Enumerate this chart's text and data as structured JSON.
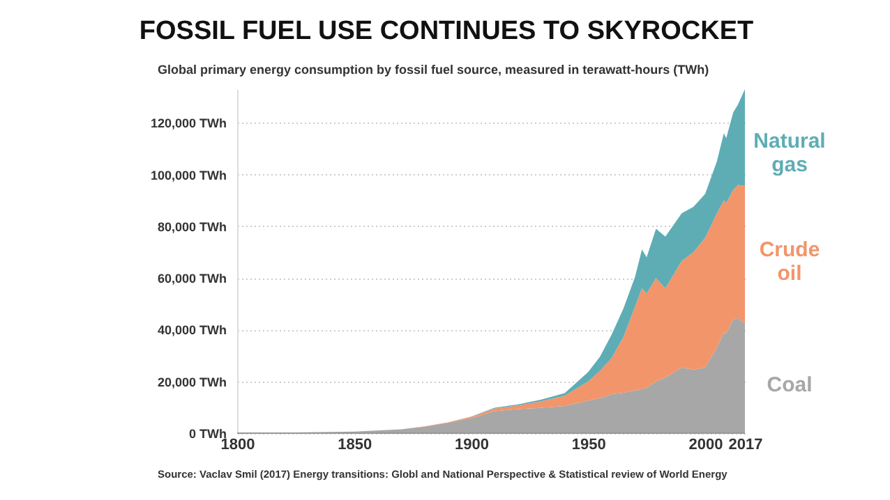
{
  "chart_data": {
    "type": "area",
    "title": "FOSSIL FUEL USE CONTINUES TO SKYROCKET",
    "subtitle": "Global primary energy consumption by fossil fuel source, measured in terawatt-hours (TWh)",
    "annotations": [
      "Source: Vaclav Smil (2017) Energy transitions: Globl and National Perspective & Statistical review of World Energy"
    ],
    "stacked": true,
    "grid": "y",
    "x": [
      1800,
      1825,
      1850,
      1870,
      1880,
      1890,
      1900,
      1910,
      1920,
      1930,
      1940,
      1950,
      1955,
      1960,
      1965,
      1970,
      1973,
      1975,
      1979,
      1983,
      1990,
      1995,
      2000,
      2005,
      2008,
      2009,
      2012,
      2014,
      2017
    ],
    "xlim": [
      1800,
      2017
    ],
    "xticks": [
      1800,
      1850,
      1900,
      1950,
      2000,
      2017
    ],
    "ylim": [
      0,
      133000
    ],
    "yticks": [
      {
        "value": 0,
        "label": "0 TWh"
      },
      {
        "value": 20000,
        "label": "20,000 TWh"
      },
      {
        "value": 40000,
        "label": "40,000 TWh"
      },
      {
        "value": 60000,
        "label": "60,000 TWh"
      },
      {
        "value": 80000,
        "label": "80,000 TWh"
      },
      {
        "value": 100000,
        "label": "100,000 TWh"
      },
      {
        "value": 120000,
        "label": "120,000 TWh"
      }
    ],
    "series": [
      {
        "name": "Coal",
        "color": "#a7a7a7",
        "values": [
          100,
          300,
          600,
          1500,
          2500,
          4000,
          5800,
          8500,
          9300,
          9800,
          10500,
          12600,
          13500,
          15000,
          15600,
          16500,
          17000,
          17500,
          20000,
          21500,
          25400,
          24500,
          25400,
          33000,
          39000,
          38500,
          44000,
          44500,
          42400
        ]
      },
      {
        "name": "Crude oil",
        "color": "#f2956b",
        "values": [
          0,
          0,
          0,
          0,
          100,
          200,
          500,
          1000,
          1400,
          2500,
          4000,
          7400,
          10500,
          14000,
          21400,
          32200,
          39000,
          36500,
          40000,
          34500,
          41200,
          45500,
          50100,
          52000,
          51000,
          50500,
          50000,
          51500,
          53200
        ]
      },
      {
        "name": "Natural gas",
        "color": "#5eadb5",
        "values": [
          0,
          0,
          0,
          0,
          0,
          0,
          100,
          300,
          400,
          700,
          1000,
          3600,
          5500,
          9000,
          11000,
          11600,
          15000,
          14000,
          19000,
          20000,
          18400,
          17500,
          17000,
          20000,
          26000,
          25000,
          30000,
          31000,
          37400
        ]
      }
    ]
  }
}
